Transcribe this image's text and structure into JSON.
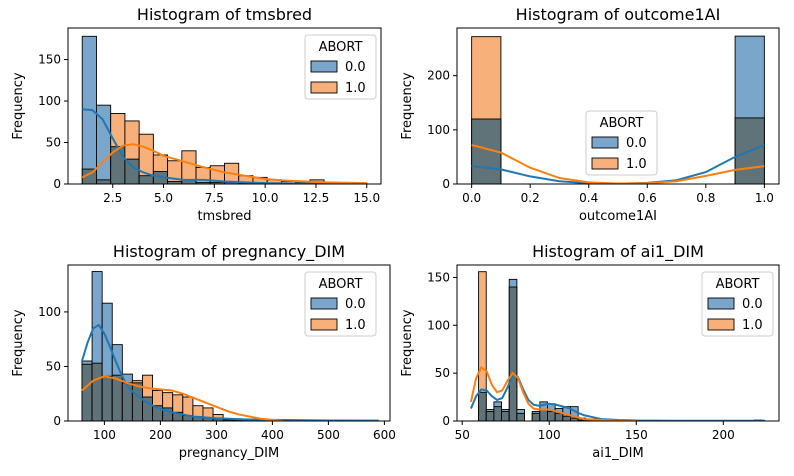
{
  "colors": {
    "series0": "#1f77b4",
    "series1": "#ff7f0e",
    "bar0": "#7aa6cc",
    "bar1": "#f8b07a",
    "overlap": "#5f7378"
  },
  "chart_data": [
    {
      "type": "histogram",
      "title": "Histogram of tmsbred",
      "xlabel": "tmsbred",
      "ylabel": "Frequency",
      "xlim": [
        0.3,
        15.7
      ],
      "ylim": [
        0,
        188
      ],
      "xticks": [
        2.5,
        5.0,
        7.5,
        10.0,
        12.5,
        15.0
      ],
      "xtick_labels": [
        "2.5",
        "5.0",
        "7.5",
        "10.0",
        "12.5",
        "15.0"
      ],
      "yticks": [
        0,
        50,
        100,
        150
      ],
      "yticks_labels": [
        "0",
        "50",
        "100",
        "150"
      ],
      "legend": {
        "title": "ABORT",
        "entries": [
          "0.0",
          "1.0"
        ],
        "position": "top-right"
      },
      "bins": [
        1.0,
        1.7,
        2.4,
        3.1,
        3.8,
        4.5,
        5.2,
        5.9,
        6.6,
        7.3,
        8.0,
        8.7,
        9.4,
        10.1,
        10.8,
        11.5,
        12.2,
        12.9,
        13.6,
        14.3,
        15.0
      ],
      "series": [
        {
          "name": "0.0",
          "values": [
            178,
            95,
            45,
            30,
            10,
            15,
            3,
            5,
            2,
            2,
            2,
            1,
            1,
            0,
            0,
            0,
            0,
            0,
            0,
            0
          ]
        },
        {
          "name": "1.0",
          "values": [
            18,
            5,
            85,
            76,
            60,
            35,
            28,
            40,
            20,
            22,
            25,
            10,
            8,
            5,
            3,
            2,
            5,
            2,
            1,
            1
          ]
        }
      ],
      "kde": [
        {
          "name": "0.0",
          "x": [
            1.0,
            1.5,
            2.0,
            2.5,
            3.0,
            3.5,
            4.0,
            4.5,
            5.0,
            6.0,
            7.0,
            8.0,
            9.0,
            10.0,
            12.0,
            15.0
          ],
          "y": [
            90,
            89,
            78,
            55,
            33,
            20,
            14,
            10,
            8,
            5,
            5,
            3,
            2,
            1,
            0.5,
            0
          ]
        },
        {
          "name": "1.0",
          "x": [
            1.0,
            1.5,
            2.0,
            2.5,
            3.0,
            3.5,
            4.0,
            4.5,
            5.0,
            6.0,
            7.0,
            8.0,
            9.0,
            10.0,
            11.0,
            12.0,
            13.0,
            15.0
          ],
          "y": [
            8,
            14,
            26,
            38,
            46,
            48,
            45,
            40,
            34,
            27,
            20,
            14,
            10,
            6,
            4,
            3,
            2,
            1
          ]
        }
      ]
    },
    {
      "type": "histogram",
      "title": "Histogram of outcome1AI",
      "xlabel": "outcome1AI",
      "ylabel": "Frequency",
      "xlim": [
        -0.05,
        1.05
      ],
      "ylim": [
        0,
        288
      ],
      "xticks": [
        0.0,
        0.2,
        0.4,
        0.6,
        0.8,
        1.0
      ],
      "xtick_labels": [
        "0.0",
        "0.2",
        "0.4",
        "0.6",
        "0.8",
        "1.0"
      ],
      "yticks": [
        0,
        100,
        200
      ],
      "yticks_labels": [
        "0",
        "100",
        "200"
      ],
      "legend": {
        "title": "ABORT",
        "entries": [
          "0.0",
          "1.0"
        ],
        "position": "center"
      },
      "bins": [
        0.0,
        0.1,
        0.2,
        0.3,
        0.4,
        0.5,
        0.6,
        0.7,
        0.8,
        0.9,
        1.0
      ],
      "series": [
        {
          "name": "0.0",
          "values": [
            120,
            0,
            0,
            0,
            0,
            0,
            0,
            0,
            0,
            273
          ]
        },
        {
          "name": "1.0",
          "values": [
            272,
            0,
            0,
            0,
            0,
            0,
            0,
            0,
            0,
            122
          ]
        }
      ],
      "kde": [
        {
          "name": "0.0",
          "x": [
            0.0,
            0.1,
            0.2,
            0.3,
            0.4,
            0.5,
            0.6,
            0.7,
            0.8,
            0.9,
            1.0
          ],
          "y": [
            33,
            27,
            14,
            5,
            1.5,
            0.5,
            2,
            7,
            22,
            50,
            72
          ]
        },
        {
          "name": "1.0",
          "x": [
            0.0,
            0.1,
            0.2,
            0.3,
            0.4,
            0.5,
            0.6,
            0.7,
            0.8,
            0.9,
            1.0
          ],
          "y": [
            72,
            58,
            30,
            11,
            3,
            1,
            1.5,
            5,
            15,
            26,
            33
          ]
        }
      ]
    },
    {
      "type": "histogram",
      "title": "Histogram of pregnancy_DIM",
      "xlabel": "pregnancy_DIM",
      "ylabel": "Frequency",
      "xlim": [
        35,
        610
      ],
      "ylim": [
        0,
        143
      ],
      "xticks": [
        100,
        200,
        300,
        400,
        500,
        600
      ],
      "xtick_labels": [
        "100",
        "200",
        "300",
        "400",
        "500",
        "600"
      ],
      "yticks": [
        0,
        50,
        100
      ],
      "yticks_labels": [
        "0",
        "50",
        "100"
      ],
      "legend": {
        "title": "ABORT",
        "entries": [
          "0.0",
          "1.0"
        ],
        "position": "top-right"
      },
      "bins": [
        60,
        78,
        96,
        114,
        132,
        150,
        168,
        186,
        204,
        222,
        240,
        258,
        276,
        294,
        312,
        330,
        348,
        366,
        384,
        402
      ],
      "series": [
        {
          "name": "0.0",
          "values": [
            55,
            137,
            108,
            70,
            43,
            35,
            22,
            14,
            12,
            8,
            5,
            4,
            3,
            2,
            1,
            1,
            0,
            0,
            0
          ]
        },
        {
          "name": "1.0",
          "values": [
            52,
            53,
            41,
            42,
            35,
            37,
            42,
            28,
            26,
            24,
            22,
            14,
            12,
            6,
            2,
            1,
            1,
            0,
            0
          ]
        }
      ],
      "kde": [
        {
          "name": "0.0",
          "x": [
            60,
            70,
            80,
            90,
            100,
            110,
            120,
            130,
            140,
            150,
            160,
            170,
            180,
            190,
            200,
            220,
            240,
            260,
            300,
            350,
            400,
            500,
            590
          ],
          "y": [
            55,
            72,
            85,
            88,
            80,
            68,
            55,
            43,
            33,
            27,
            23,
            19,
            16,
            13,
            11,
            8,
            6,
            4,
            2.5,
            1.5,
            1,
            0.5,
            0.3
          ]
        },
        {
          "name": "1.0",
          "x": [
            60,
            80,
            100,
            120,
            140,
            160,
            180,
            200,
            220,
            240,
            260,
            280,
            300,
            320,
            340,
            360,
            380,
            400,
            420
          ],
          "y": [
            28,
            37,
            41,
            39,
            35,
            32,
            30,
            29,
            28,
            25,
            21,
            17,
            13,
            9,
            6,
            4,
            2,
            1,
            0
          ]
        }
      ]
    },
    {
      "type": "histogram",
      "title": "Histogram of ai1_DIM",
      "xlabel": "ai1_DIM",
      "ylabel": "Frequency",
      "xlim": [
        47,
        232
      ],
      "ylim": [
        0,
        163
      ],
      "xticks": [
        50,
        100,
        150,
        200
      ],
      "xtick_labels": [
        "50",
        "100",
        "150",
        "200"
      ],
      "yticks": [
        0,
        50,
        100,
        150
      ],
      "yticks_labels": [
        "0",
        "50",
        "100",
        "150"
      ],
      "legend": {
        "title": "ABORT",
        "entries": [
          "0.0",
          "1.0"
        ],
        "position": "top-right"
      },
      "bins": [
        55,
        59.4,
        63.8,
        68.2,
        72.6,
        77,
        81.4,
        85.8,
        90.2,
        94.6,
        99,
        103.4,
        107.8,
        112.2,
        116.6,
        121,
        125.4,
        129.8,
        134.2,
        138.6,
        143,
        147.4,
        151.8,
        156.2,
        160.6,
        165,
        169.4,
        173.8,
        178.2,
        182.6,
        187,
        191.4,
        195.8,
        200.2,
        204.6,
        209,
        213.4,
        217.8,
        222.2
      ],
      "series": [
        {
          "name": "0.0",
          "values": [
            0,
            30,
            12,
            20,
            12,
            148,
            12,
            0,
            10,
            20,
            18,
            13,
            15,
            15,
            3,
            1,
            2,
            1,
            1,
            0,
            0,
            0,
            0,
            0,
            0,
            0,
            0,
            0,
            0,
            0,
            0,
            0,
            0,
            0,
            0,
            0,
            0,
            1
          ]
        },
        {
          "name": "1.0",
          "values": [
            0,
            156,
            10,
            15,
            10,
            140,
            8,
            0,
            8,
            12,
            10,
            8,
            5,
            3,
            1,
            0,
            1,
            0,
            0,
            0,
            0,
            0,
            0,
            0,
            0,
            0,
            0,
            0,
            0,
            0,
            0,
            0,
            0,
            0,
            0,
            0,
            0,
            0
          ]
        }
      ],
      "kde": [
        {
          "name": "0.0",
          "x": [
            55,
            58,
            61,
            64,
            67,
            70,
            73,
            76,
            79,
            82,
            85,
            88,
            91,
            94,
            97,
            100,
            104,
            108,
            112,
            116,
            120,
            125,
            130,
            140,
            150,
            170,
            200,
            224
          ],
          "y": [
            13,
            26,
            33,
            32,
            26,
            22,
            24,
            35,
            48,
            46,
            33,
            22,
            17,
            16,
            17,
            18,
            17,
            15,
            13,
            9,
            6,
            4,
            2,
            1,
            0.5,
            0.3,
            0.2,
            0.2
          ]
        },
        {
          "name": "1.0",
          "x": [
            55,
            58,
            61,
            64,
            67,
            70,
            73,
            76,
            79,
            82,
            85,
            88,
            91,
            94,
            97,
            100,
            104,
            108,
            112,
            116,
            120,
            125,
            130,
            140,
            150
          ],
          "y": [
            20,
            45,
            56,
            52,
            38,
            30,
            32,
            42,
            50,
            45,
            30,
            18,
            13,
            12,
            12,
            12,
            10,
            8,
            6,
            4,
            2,
            1.5,
            1,
            0.3,
            0
          ]
        }
      ]
    }
  ]
}
